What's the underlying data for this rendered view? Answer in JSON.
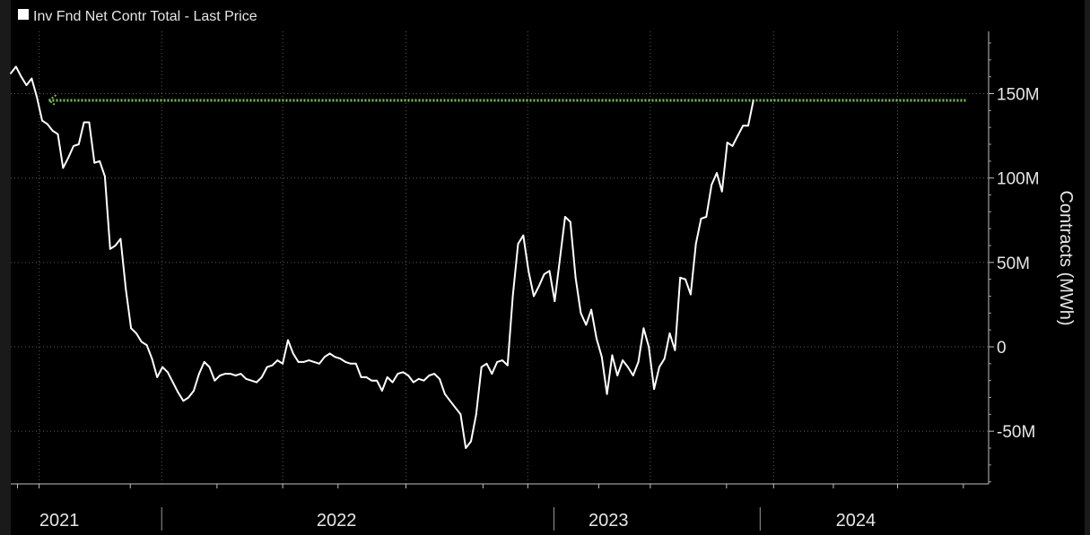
{
  "chart_data": {
    "type": "line",
    "legend_label": "Inv Fnd Net Contr Total - Last Price",
    "ylabel": "Contracts (MWh)",
    "ylim": [
      -81000000,
      186000000
    ],
    "y_ticks": [
      {
        "value": 150000000,
        "label": "150M"
      },
      {
        "value": 100000000,
        "label": "100M"
      },
      {
        "value": 50000000,
        "label": "50M"
      },
      {
        "value": 0,
        "label": "0"
      },
      {
        "value": -50000000,
        "label": "-50M"
      }
    ],
    "x_labels": [
      {
        "label": "2021",
        "date": "2021-03-06"
      },
      {
        "label": "2022",
        "date": "2022-03-12"
      },
      {
        "label": "2023",
        "date": "2023-03-11"
      },
      {
        "label": "2024",
        "date": "2024-02-05"
      }
    ],
    "x_separators": [
      "2021-07-21",
      "2022-12-28",
      "2023-09-30"
    ],
    "x_gridlines": [
      "2021-02-07",
      "2021-07-21",
      "2021-12-30",
      "2022-06-13",
      "2022-11-23",
      "2023-05-06",
      "2023-10-18",
      "2024-04-01"
    ],
    "x_minor_ticks": [
      "2021-01-09",
      "2021-02-07",
      "2021-06-09",
      "2021-10-03",
      "2021-12-30",
      "2022-03-14",
      "2022-06-13",
      "2022-09-24",
      "2022-11-23",
      "2023-02-26",
      "2023-05-06",
      "2023-08-16",
      "2023-10-18",
      "2024-01-06",
      "2024-04-01",
      "2024-06-28"
    ],
    "reference_line": {
      "value": 146000000,
      "color": "#76c442",
      "start": "2021-02-20",
      "end": "2024-07-03"
    },
    "series": [
      {
        "color": "#ffffff",
        "points": [
          {
            "x": "2020-12-31",
            "y": 162000000
          },
          {
            "x": "2021-01-07",
            "y": 166000000
          },
          {
            "x": "2021-01-14",
            "y": 160000000
          },
          {
            "x": "2021-01-21",
            "y": 155000000
          },
          {
            "x": "2021-01-28",
            "y": 159000000
          },
          {
            "x": "2021-02-04",
            "y": 148000000
          },
          {
            "x": "2021-02-11",
            "y": 134000000
          },
          {
            "x": "2021-02-18",
            "y": 132000000
          },
          {
            "x": "2021-02-25",
            "y": 128000000
          },
          {
            "x": "2021-03-04",
            "y": 126000000
          },
          {
            "x": "2021-03-11",
            "y": 106000000
          },
          {
            "x": "2021-03-18",
            "y": 112000000
          },
          {
            "x": "2021-03-25",
            "y": 119000000
          },
          {
            "x": "2021-04-01",
            "y": 120000000
          },
          {
            "x": "2021-04-08",
            "y": 133000000
          },
          {
            "x": "2021-04-15",
            "y": 133000000
          },
          {
            "x": "2021-04-22",
            "y": 109000000
          },
          {
            "x": "2021-04-29",
            "y": 110000000
          },
          {
            "x": "2021-05-06",
            "y": 101000000
          },
          {
            "x": "2021-05-13",
            "y": 58000000
          },
          {
            "x": "2021-05-20",
            "y": 60000000
          },
          {
            "x": "2021-05-27",
            "y": 64000000
          },
          {
            "x": "2021-06-03",
            "y": 34000000
          },
          {
            "x": "2021-06-10",
            "y": 11000000
          },
          {
            "x": "2021-06-17",
            "y": 8000000
          },
          {
            "x": "2021-06-24",
            "y": 3000000
          },
          {
            "x": "2021-07-01",
            "y": 1000000
          },
          {
            "x": "2021-07-08",
            "y": -7000000
          },
          {
            "x": "2021-07-15",
            "y": -18000000
          },
          {
            "x": "2021-07-22",
            "y": -12000000
          },
          {
            "x": "2021-07-29",
            "y": -15000000
          },
          {
            "x": "2021-08-05",
            "y": -21000000
          },
          {
            "x": "2021-08-12",
            "y": -27000000
          },
          {
            "x": "2021-08-19",
            "y": -32000000
          },
          {
            "x": "2021-08-26",
            "y": -30000000
          },
          {
            "x": "2021-09-02",
            "y": -26000000
          },
          {
            "x": "2021-09-09",
            "y": -16000000
          },
          {
            "x": "2021-09-16",
            "y": -9000000
          },
          {
            "x": "2021-09-23",
            "y": -12000000
          },
          {
            "x": "2021-09-30",
            "y": -20000000
          },
          {
            "x": "2021-10-07",
            "y": -17000000
          },
          {
            "x": "2021-10-14",
            "y": -16000000
          },
          {
            "x": "2021-10-21",
            "y": -16000000
          },
          {
            "x": "2021-10-28",
            "y": -17000000
          },
          {
            "x": "2021-11-04",
            "y": -16000000
          },
          {
            "x": "2021-11-11",
            "y": -19000000
          },
          {
            "x": "2021-11-18",
            "y": -20000000
          },
          {
            "x": "2021-11-25",
            "y": -21000000
          },
          {
            "x": "2021-12-02",
            "y": -18000000
          },
          {
            "x": "2021-12-09",
            "y": -12000000
          },
          {
            "x": "2021-12-16",
            "y": -11000000
          },
          {
            "x": "2021-12-23",
            "y": -8000000
          },
          {
            "x": "2021-12-30",
            "y": -10000000
          },
          {
            "x": "2022-01-06",
            "y": 4000000
          },
          {
            "x": "2022-01-13",
            "y": -4000000
          },
          {
            "x": "2022-01-20",
            "y": -9000000
          },
          {
            "x": "2022-01-27",
            "y": -9000000
          },
          {
            "x": "2022-02-03",
            "y": -8000000
          },
          {
            "x": "2022-02-10",
            "y": -9000000
          },
          {
            "x": "2022-02-17",
            "y": -10000000
          },
          {
            "x": "2022-02-24",
            "y": -6000000
          },
          {
            "x": "2022-03-03",
            "y": -4000000
          },
          {
            "x": "2022-03-10",
            "y": -6000000
          },
          {
            "x": "2022-03-17",
            "y": -7000000
          },
          {
            "x": "2022-03-24",
            "y": -9000000
          },
          {
            "x": "2022-03-31",
            "y": -10000000
          },
          {
            "x": "2022-04-07",
            "y": -10000000
          },
          {
            "x": "2022-04-14",
            "y": -18000000
          },
          {
            "x": "2022-04-21",
            "y": -18000000
          },
          {
            "x": "2022-04-28",
            "y": -20000000
          },
          {
            "x": "2022-05-05",
            "y": -20000000
          },
          {
            "x": "2022-05-12",
            "y": -26000000
          },
          {
            "x": "2022-05-19",
            "y": -18000000
          },
          {
            "x": "2022-05-26",
            "y": -21000000
          },
          {
            "x": "2022-06-02",
            "y": -16000000
          },
          {
            "x": "2022-06-09",
            "y": -15000000
          },
          {
            "x": "2022-06-16",
            "y": -17000000
          },
          {
            "x": "2022-06-23",
            "y": -21000000
          },
          {
            "x": "2022-06-30",
            "y": -19000000
          },
          {
            "x": "2022-07-07",
            "y": -20000000
          },
          {
            "x": "2022-07-14",
            "y": -17000000
          },
          {
            "x": "2022-07-21",
            "y": -16000000
          },
          {
            "x": "2022-07-28",
            "y": -19000000
          },
          {
            "x": "2022-08-04",
            "y": -28000000
          },
          {
            "x": "2022-08-11",
            "y": -32000000
          },
          {
            "x": "2022-08-18",
            "y": -36000000
          },
          {
            "x": "2022-08-25",
            "y": -40000000
          },
          {
            "x": "2022-09-01",
            "y": -60000000
          },
          {
            "x": "2022-09-08",
            "y": -56000000
          },
          {
            "x": "2022-09-15",
            "y": -40000000
          },
          {
            "x": "2022-09-22",
            "y": -12000000
          },
          {
            "x": "2022-09-29",
            "y": -10000000
          },
          {
            "x": "2022-10-06",
            "y": -16000000
          },
          {
            "x": "2022-10-13",
            "y": -9000000
          },
          {
            "x": "2022-10-20",
            "y": -8000000
          },
          {
            "x": "2022-10-27",
            "y": -11000000
          },
          {
            "x": "2022-11-03",
            "y": 30000000
          },
          {
            "x": "2022-11-10",
            "y": 61000000
          },
          {
            "x": "2022-11-17",
            "y": 66000000
          },
          {
            "x": "2022-11-24",
            "y": 45000000
          },
          {
            "x": "2022-12-01",
            "y": 30000000
          },
          {
            "x": "2022-12-08",
            "y": 36000000
          },
          {
            "x": "2022-12-15",
            "y": 43000000
          },
          {
            "x": "2022-12-22",
            "y": 45000000
          },
          {
            "x": "2022-12-29",
            "y": 27000000
          },
          {
            "x": "2023-01-05",
            "y": 52000000
          },
          {
            "x": "2023-01-12",
            "y": 77000000
          },
          {
            "x": "2023-01-19",
            "y": 74000000
          },
          {
            "x": "2023-01-26",
            "y": 41000000
          },
          {
            "x": "2023-02-02",
            "y": 20000000
          },
          {
            "x": "2023-02-09",
            "y": 13000000
          },
          {
            "x": "2023-02-16",
            "y": 22000000
          },
          {
            "x": "2023-02-23",
            "y": 5000000
          },
          {
            "x": "2023-03-02",
            "y": -6000000
          },
          {
            "x": "2023-03-09",
            "y": -28000000
          },
          {
            "x": "2023-03-16",
            "y": -5000000
          },
          {
            "x": "2023-03-23",
            "y": -17000000
          },
          {
            "x": "2023-03-30",
            "y": -8000000
          },
          {
            "x": "2023-04-06",
            "y": -12000000
          },
          {
            "x": "2023-04-13",
            "y": -17000000
          },
          {
            "x": "2023-04-20",
            "y": -9000000
          },
          {
            "x": "2023-04-27",
            "y": 11000000
          },
          {
            "x": "2023-05-04",
            "y": 0
          },
          {
            "x": "2023-05-11",
            "y": -25000000
          },
          {
            "x": "2023-05-18",
            "y": -12000000
          },
          {
            "x": "2023-05-25",
            "y": -7000000
          },
          {
            "x": "2023-06-01",
            "y": 8000000
          },
          {
            "x": "2023-06-08",
            "y": -2000000
          },
          {
            "x": "2023-06-15",
            "y": 41000000
          },
          {
            "x": "2023-06-22",
            "y": 40000000
          },
          {
            "x": "2023-06-29",
            "y": 31000000
          },
          {
            "x": "2023-07-06",
            "y": 61000000
          },
          {
            "x": "2023-07-13",
            "y": 76000000
          },
          {
            "x": "2023-07-20",
            "y": 77000000
          },
          {
            "x": "2023-07-27",
            "y": 96000000
          },
          {
            "x": "2023-08-03",
            "y": 103000000
          },
          {
            "x": "2023-08-10",
            "y": 92000000
          },
          {
            "x": "2023-08-17",
            "y": 121000000
          },
          {
            "x": "2023-08-24",
            "y": 119000000
          },
          {
            "x": "2023-08-31",
            "y": 125000000
          },
          {
            "x": "2023-09-07",
            "y": 131000000
          },
          {
            "x": "2023-09-14",
            "y": 131000000
          },
          {
            "x": "2023-09-21",
            "y": 146000000
          }
        ]
      }
    ],
    "grid": true
  }
}
